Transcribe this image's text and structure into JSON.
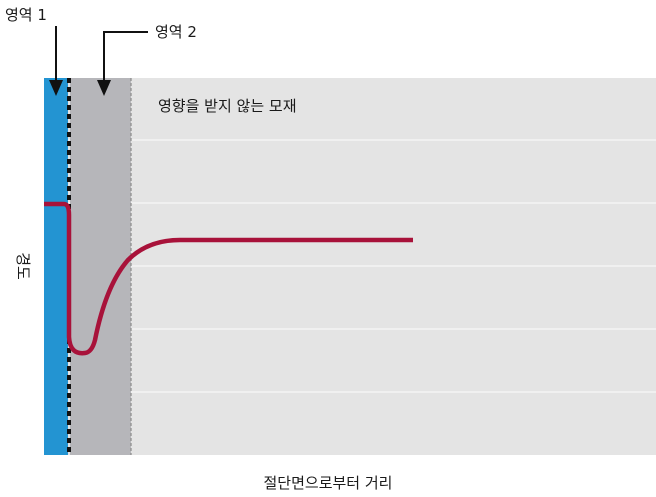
{
  "labels": {
    "zone1": "영역 1",
    "zone2": "영역 2",
    "unaffected": "영향을 받지 않는 모재",
    "y_axis": "경도",
    "x_axis": "절단면으로부터 거리"
  },
  "colors": {
    "zone1_fill": "#2394d2",
    "zone2_fill": "#b6b6ba",
    "base_fill": "#e4e4e4",
    "grid_line": "#f7f7f7",
    "hardness_curve": "#a8123a",
    "boundary_line": "#111111",
    "zone2_edge": "#8a8a8a"
  }
}
